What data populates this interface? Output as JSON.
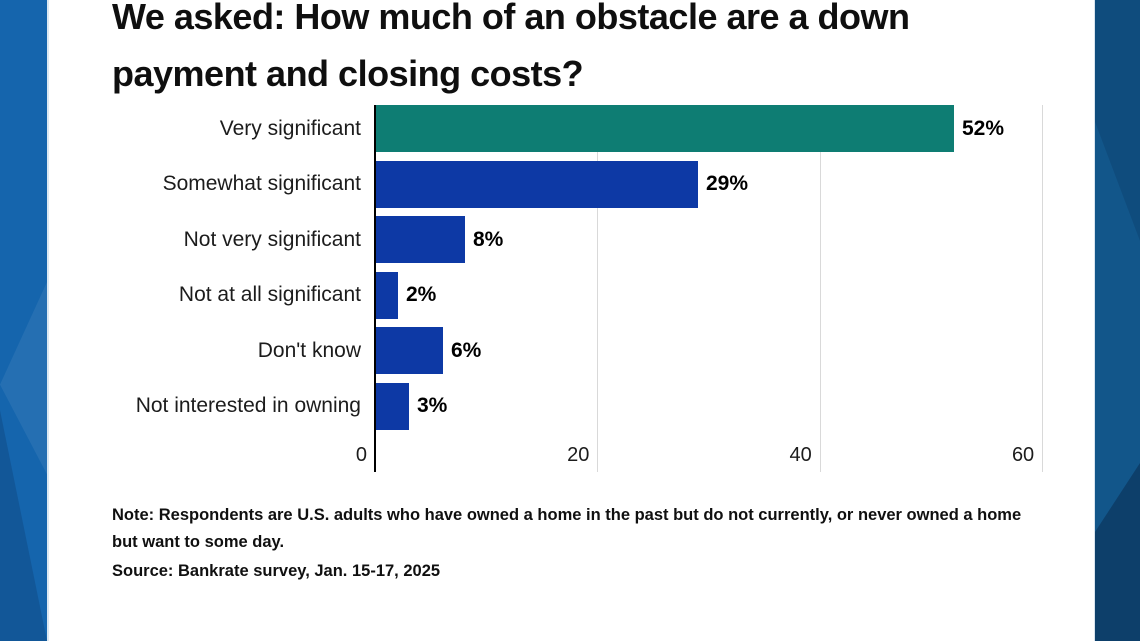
{
  "colors": {
    "teal_bar": "#0e7d73",
    "blue_bar": "#0d39a5",
    "left_band": "#1565ad",
    "right_band": "#12568a",
    "gridline": "#d9d9d9",
    "axis_line": "#000000",
    "text_dark": "#111111"
  },
  "chart_data": {
    "type": "bar",
    "orientation": "horizontal",
    "title": "We asked: How much of an obstacle are a down payment and closing costs?",
    "categories": [
      "Very significant",
      "Somewhat significant",
      "Not very significant",
      "Not at all significant",
      "Don't know",
      "Not interested in owning"
    ],
    "values": [
      52,
      29,
      8,
      2,
      6,
      3
    ],
    "value_labels": [
      "52%",
      "29%",
      "8%",
      "2%",
      "6%",
      "3%"
    ],
    "bar_colors": [
      "#0e7d73",
      "#0d39a5",
      "#0d39a5",
      "#0d39a5",
      "#0d39a5",
      "#0d39a5"
    ],
    "xlabel": "",
    "ylabel": "",
    "x_ticks": [
      0,
      20,
      40,
      60
    ],
    "x_tick_labels": [
      "0",
      "20",
      "40",
      "60"
    ],
    "xlim": [
      0,
      60
    ],
    "grid": "vertical-light",
    "legend": "none",
    "note": "Note: Respondents are U.S. adults who have owned a home in the past but do not currently, or never owned a home but want to some day.",
    "source": "Source: Bankrate survey, Jan. 15-17, 2025"
  }
}
